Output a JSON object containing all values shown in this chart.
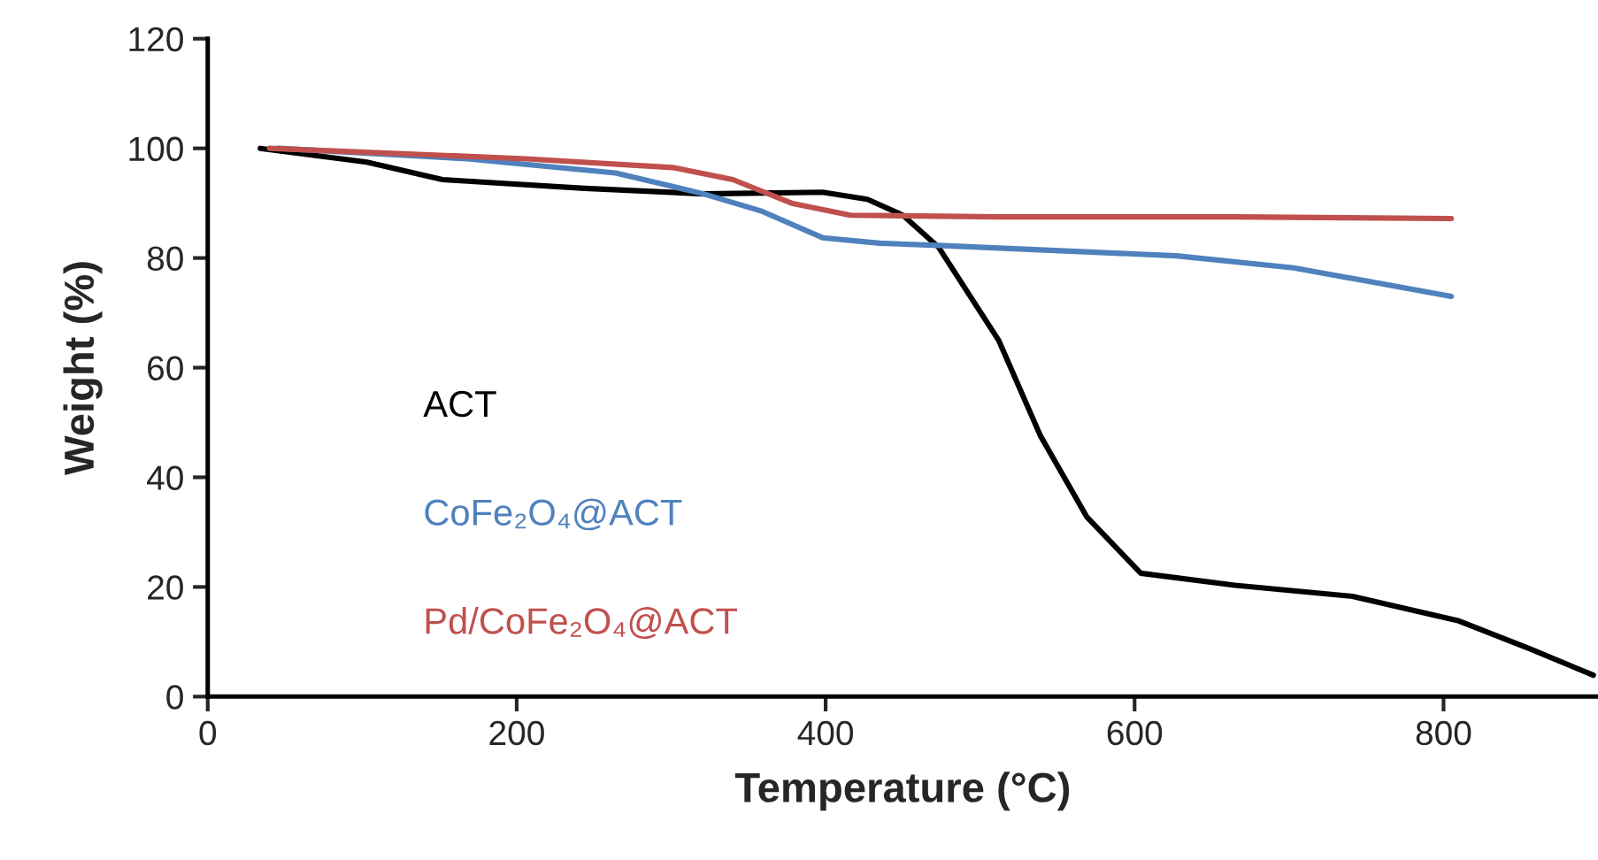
{
  "chart_data": {
    "type": "line",
    "xlabel": "Temperature (°C)",
    "ylabel": "Weight (%)",
    "xlim": [
      0,
      900
    ],
    "xticks": [
      0,
      200,
      400,
      600,
      800
    ],
    "ylim": [
      0,
      120
    ],
    "yticks": [
      0,
      20,
      40,
      60,
      80,
      100,
      120
    ],
    "grid": false,
    "legend": false,
    "series": [
      {
        "name": "ACT",
        "color": "#000000",
        "x": [
          34,
          103,
          152,
          244,
          321,
          398,
          427,
          450,
          473,
          512,
          539,
          569,
          604,
          665,
          741,
          810,
          856,
          897
        ],
        "values": [
          100,
          97.5,
          94.3,
          92.7,
          91.7,
          92,
          90.7,
          87.8,
          82,
          65,
          47.6,
          32.8,
          22.5,
          20.3,
          18.3,
          13.8,
          8.7,
          3.9
        ]
      },
      {
        "name": "CoFe₂O₄@ACT",
        "color": "#4f81bd",
        "x": [
          46,
          168,
          264,
          321,
          359,
          398,
          435,
          473,
          627,
          703,
          805
        ],
        "values": [
          100,
          98.1,
          95.5,
          91.7,
          88.5,
          83.7,
          82.7,
          82.3,
          80.4,
          78.2,
          73
        ]
      },
      {
        "name": "Pd/CoFe₂O₄@ACT",
        "color": "#c0504d",
        "x": [
          40,
          206,
          301,
          340,
          378,
          416,
          512,
          665,
          805
        ],
        "values": [
          100,
          98.1,
          96.5,
          94.3,
          90,
          87.8,
          87.5,
          87.5,
          87.2
        ]
      }
    ]
  }
}
